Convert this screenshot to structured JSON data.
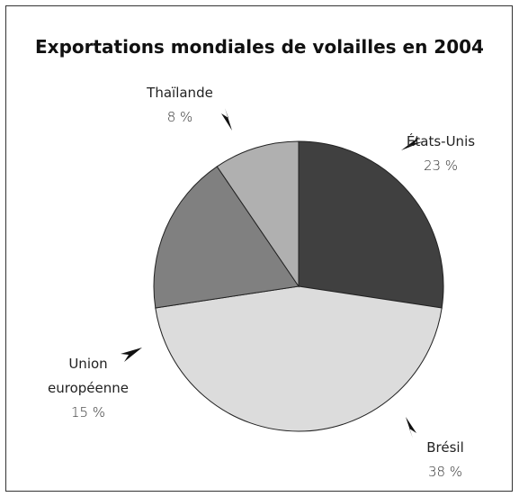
{
  "chart_data": {
    "type": "pie",
    "title": "Exportations mondiales de volailles en 2004",
    "categories": [
      "États-Unis",
      "Brésil",
      "Union européenne",
      "Thaïlande"
    ],
    "values": [
      23,
      38,
      15,
      8
    ],
    "value_labels": [
      "23 %",
      "38 %",
      "15 %",
      "8 %"
    ],
    "colors": [
      "#404040",
      "#dcdcdc",
      "#808080",
      "#b0b0b0"
    ]
  }
}
